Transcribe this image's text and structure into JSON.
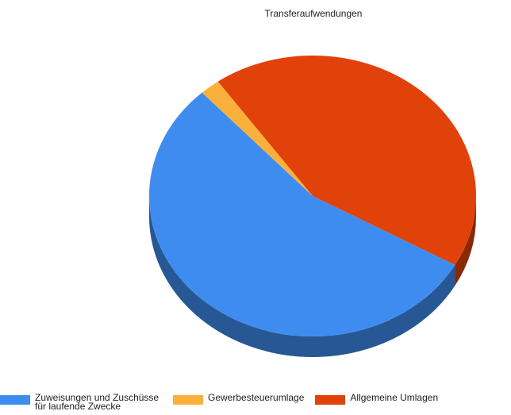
{
  "chart_data": {
    "type": "pie",
    "title": "Transferaufwendungen",
    "categories": [
      "Zuweisungen und Zuschüsse für laufende Zwecke",
      "Gewerbesteuerumlage",
      "Allgemeine Umlagen"
    ],
    "values": [
      55,
      2,
      43
    ],
    "colors": [
      "#3f8cf0",
      "#fbb03b",
      "#e0420a"
    ],
    "legend": "bottom"
  }
}
